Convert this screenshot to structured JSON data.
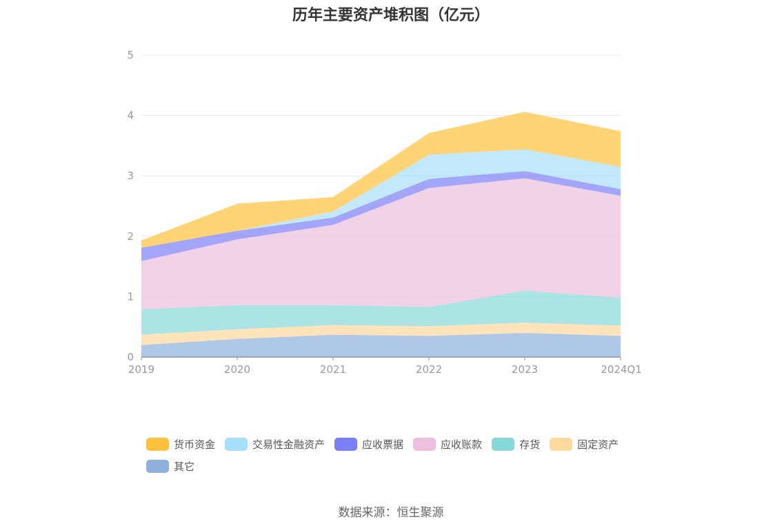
{
  "chart_data": {
    "type": "area",
    "stacked": true,
    "title": "历年主要资产堆积图（亿元）",
    "categories": [
      "2019",
      "2020",
      "2021",
      "2022",
      "2023",
      "2024Q1"
    ],
    "ylim": [
      0,
      5
    ],
    "yticks": [
      0,
      1,
      2,
      3,
      4,
      5
    ],
    "grid": true,
    "legend_position": "bottom",
    "series": [
      {
        "name": "其它",
        "color": "#8fb0dd",
        "values": [
          0.2,
          0.3,
          0.37,
          0.35,
          0.4,
          0.35
        ]
      },
      {
        "name": "固定资产",
        "color": "#ffd99e",
        "values": [
          0.17,
          0.16,
          0.16,
          0.16,
          0.17,
          0.17
        ]
      },
      {
        "name": "存货",
        "color": "#88d8d8",
        "values": [
          0.42,
          0.4,
          0.33,
          0.32,
          0.53,
          0.46
        ]
      },
      {
        "name": "应收账款",
        "color": "#ebbfdd",
        "values": [
          0.8,
          1.09,
          1.33,
          1.97,
          1.86,
          1.69
        ]
      },
      {
        "name": "应收票据",
        "color": "#7b7ff5",
        "values": [
          0.22,
          0.14,
          0.12,
          0.15,
          0.12,
          0.11
        ]
      },
      {
        "name": "交易性金融资产",
        "color": "#a6dff9",
        "values": [
          0.0,
          0.0,
          0.1,
          0.4,
          0.36,
          0.37
        ]
      },
      {
        "name": "货币资金",
        "color": "#ffc23d",
        "values": [
          0.12,
          0.45,
          0.24,
          0.36,
          0.62,
          0.59
        ]
      }
    ],
    "legend_order": [
      "货币资金",
      "交易性金融资产",
      "应收票据",
      "应收账款",
      "存货",
      "固定资产",
      "其它"
    ]
  },
  "source_note": "数据来源：恒生聚源"
}
